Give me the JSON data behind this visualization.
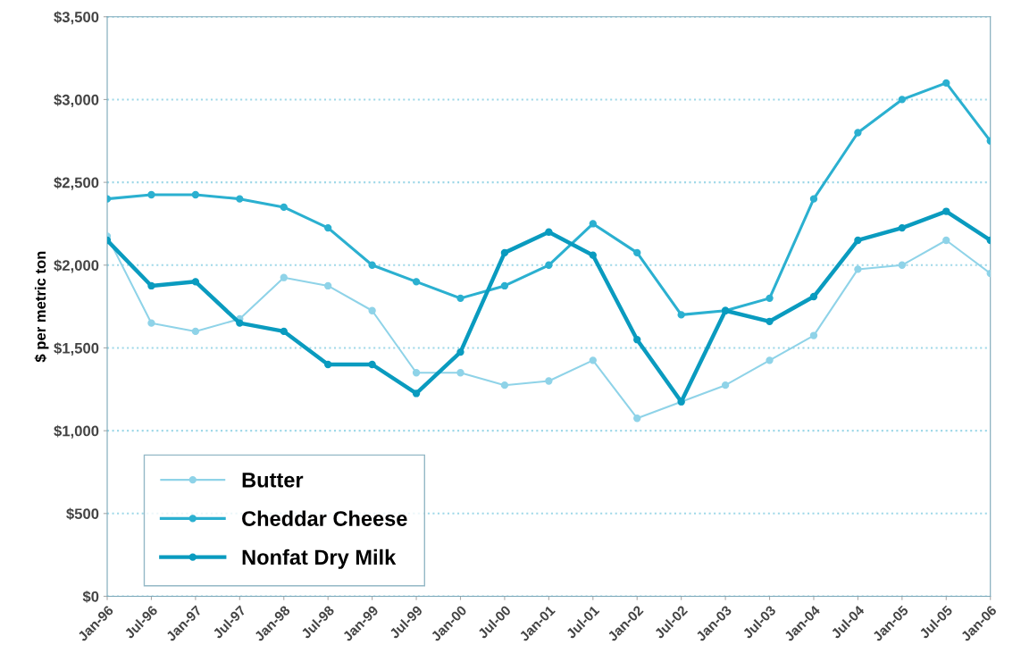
{
  "chart_data": {
    "type": "line",
    "ylabel": "$ per metric ton",
    "categories": [
      "Jan-96",
      "Jul-96",
      "Jan-97",
      "Jul-97",
      "Jan-98",
      "Jul-98",
      "Jan-99",
      "Jul-99",
      "Jan-00",
      "Jul-00",
      "Jan-01",
      "Jul-01",
      "Jan-02",
      "Jul-02",
      "Jan-03",
      "Jul-03",
      "Jan-04",
      "Jul-04",
      "Jan-05",
      "Jul-05",
      "Jan-06"
    ],
    "series": [
      {
        "name": "Butter",
        "color": "#8fd3e8",
        "values": [
          2175,
          1650,
          1600,
          1675,
          1925,
          1875,
          1725,
          1350,
          1350,
          1275,
          1300,
          1425,
          1075,
          1175,
          1275,
          1425,
          1575,
          1975,
          2000,
          2150,
          1950
        ]
      },
      {
        "name": "Cheddar Cheese",
        "color": "#2bb0d0",
        "values": [
          2400,
          2425,
          2425,
          2400,
          2350,
          2225,
          2000,
          1900,
          1800,
          1875,
          2000,
          2250,
          2075,
          1700,
          1725,
          1800,
          2400,
          2800,
          3000,
          3100,
          2750
        ]
      },
      {
        "name": "Nonfat Dry Milk",
        "color": "#0a9bbf",
        "values": [
          2150,
          1875,
          1900,
          1650,
          1600,
          1400,
          1400,
          1225,
          1475,
          2075,
          2200,
          2060,
          1550,
          1175,
          1725,
          1660,
          1810,
          2150,
          2225,
          2325,
          2150
        ]
      }
    ],
    "ylim": [
      0,
      3500
    ],
    "yticks": [
      {
        "value": 0,
        "label": "$0"
      },
      {
        "value": 500,
        "label": "$500"
      },
      {
        "value": 1000,
        "label": "$1,000"
      },
      {
        "value": 1500,
        "label": "$1,500"
      },
      {
        "value": 2000,
        "label": "$2,000"
      },
      {
        "value": 2500,
        "label": "$2,500"
      },
      {
        "value": 3000,
        "label": "$3,000"
      },
      {
        "value": 3500,
        "label": "$3,500"
      }
    ],
    "grid": "y",
    "legend": "bottom left",
    "marker": "circle",
    "line_style": "solid"
  }
}
